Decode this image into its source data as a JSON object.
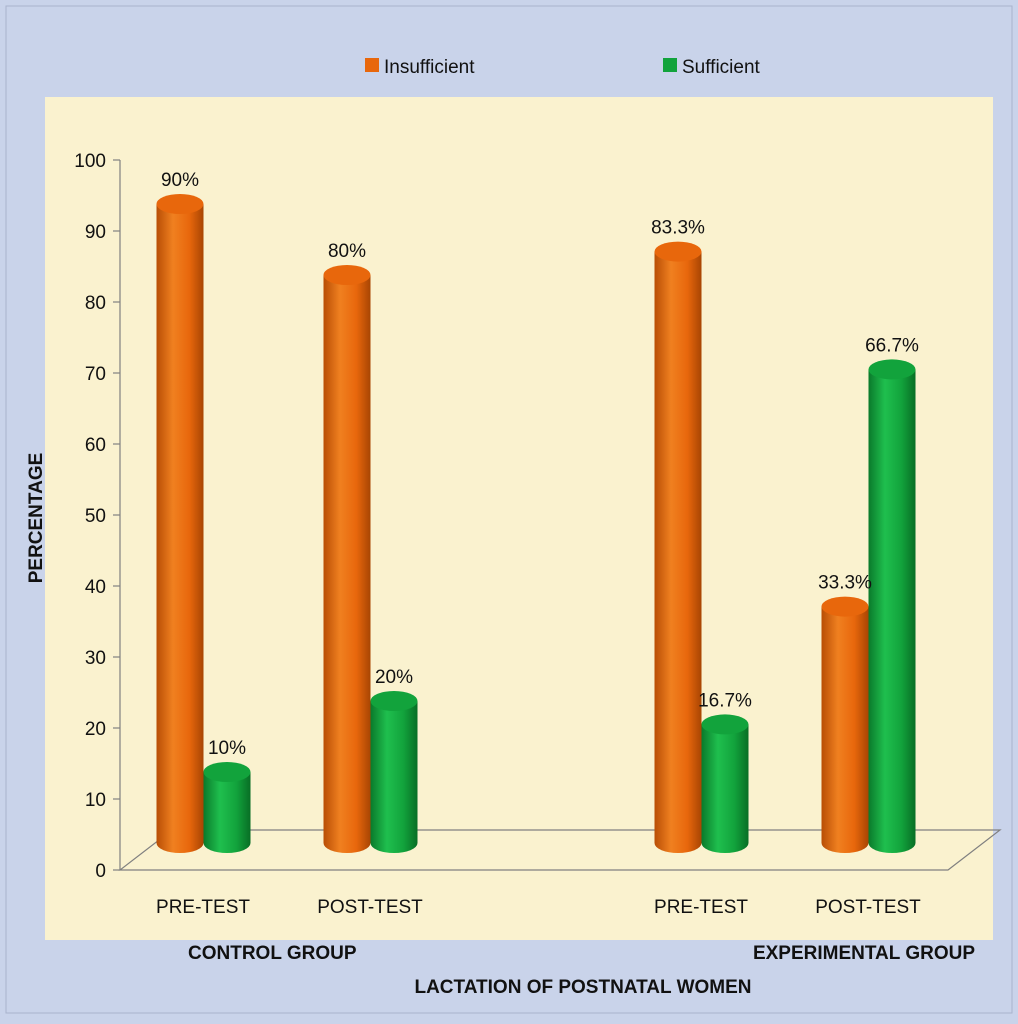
{
  "chart_data": {
    "type": "bar",
    "categories": [
      "PRE-TEST",
      "POST-TEST",
      "PRE-TEST",
      "POST-TEST"
    ],
    "groups": [
      {
        "label": "CONTROL GROUP",
        "categories": [
          "PRE-TEST",
          "POST-TEST"
        ]
      },
      {
        "label": "EXPERIMENTAL GROUP",
        "categories": [
          "PRE-TEST",
          "POST-TEST"
        ]
      }
    ],
    "series": [
      {
        "name": "Insufficient",
        "color": "#E8670C",
        "values": [
          90,
          80,
          83.3,
          33.3
        ],
        "labels": [
          "90%",
          "80%",
          "83.3%",
          "33.3%"
        ]
      },
      {
        "name": "Sufficient",
        "color": "#12A33C",
        "values": [
          10,
          20,
          16.7,
          66.7
        ],
        "labels": [
          "10%",
          "20%",
          "16.7%",
          "66.7%"
        ]
      }
    ],
    "xlabel": "LACTATION OF POSTNATAL WOMEN",
    "ylabel": "PERCENTAGE",
    "ylim": [
      0,
      100
    ],
    "yticks": [
      0,
      10,
      20,
      30,
      40,
      50,
      60,
      70,
      80,
      90,
      100
    ],
    "legend_position": "top",
    "style": "3d-cylinder",
    "grid": false
  }
}
